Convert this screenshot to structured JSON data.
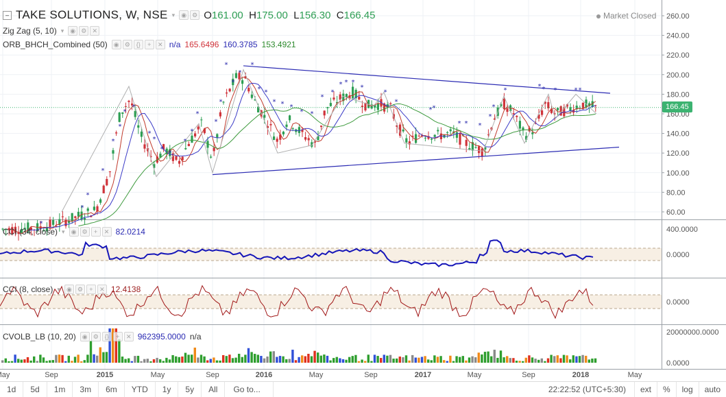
{
  "header": {
    "symbol": "TAKE SOLUTIONS, W, NSE",
    "open_label": "O",
    "open": "161.00",
    "high_label": "H",
    "high": "175.00",
    "low_label": "L",
    "low": "156.30",
    "close_label": "C",
    "close": "166.45",
    "market_status": "Market Closed"
  },
  "indicators": {
    "zigzag": "Zig Zag (5, 10)",
    "orb": {
      "name": "ORB_BHCH_Combined (50)",
      "na": "n/a",
      "v1": "165.6496",
      "v2": "160.3785",
      "v3": "153.4921"
    },
    "cci34": {
      "name": "CCI (34, close)",
      "value": "82.0214"
    },
    "cci8": {
      "name": "CCI (8, close)",
      "value": "12.4138"
    },
    "cvolb": {
      "name": "CVOLB_LB (10, 20)",
      "value": "962395.0000",
      "na": "n/a"
    }
  },
  "price_axis": [
    "260.00",
    "240.00",
    "220.00",
    "200.00",
    "180.00",
    "160.00",
    "140.00",
    "120.00",
    "100.00",
    "80.00",
    "60.00"
  ],
  "last_price_tag": "166.45",
  "cci34_axis": [
    "400.0000",
    "0.0000"
  ],
  "cci8_axis": [
    "0.0000"
  ],
  "volume_axis": [
    "20000000.0000",
    "0.0000"
  ],
  "time_axis": [
    "May",
    "Sep",
    "2015",
    "May",
    "Sep",
    "2016",
    "May",
    "Sep",
    "2017",
    "May",
    "Sep",
    "2018",
    "May"
  ],
  "bottom_bar": {
    "timeframes": [
      "1d",
      "5d",
      "1m",
      "3m",
      "6m",
      "YTD",
      "1y",
      "5y",
      "All"
    ],
    "goto": "Go to...",
    "clock": "22:22:52 (UTC+5:30)",
    "options": [
      "ext",
      "%",
      "log",
      "auto"
    ]
  },
  "colors": {
    "up": "#2e9e54",
    "down": "#d0343b",
    "trend": "#2b2bb3",
    "ma_fast": "#c0392b",
    "ma_mid": "#3b3bc7",
    "ma_slow": "#3d9a3d",
    "cci34_line": "#1515b8",
    "cci8_line": "#a01515"
  }
}
